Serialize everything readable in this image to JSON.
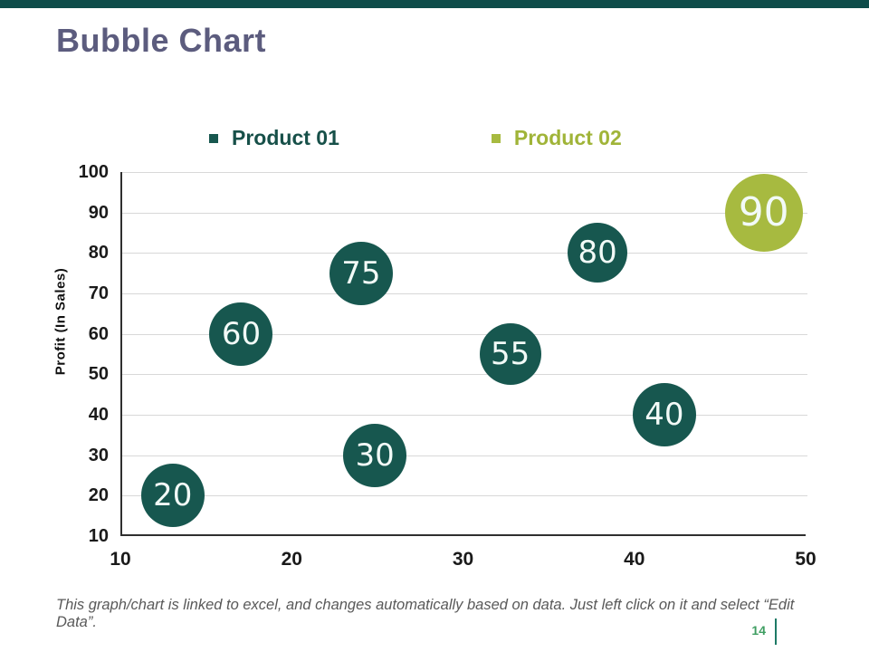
{
  "slide": {
    "title": "Bubble Chart",
    "footer": "This graph/chart is linked to excel, and changes automatically based on data. Just left click on it and select “Edit Data”.",
    "page_number": "14"
  },
  "colors": {
    "top_bar": "#0e4c4a",
    "title": "#5c5c7e",
    "series1": "#17574f",
    "series2": "#a7ba40",
    "legend1_text": "#175049",
    "legend2_text": "#a0b438",
    "gridline": "#d8d8d8",
    "axis_line": "#2f2f2f",
    "page_number": "#3f9e62"
  },
  "chart_data": {
    "type": "scatter",
    "variant": "bubble",
    "title": "",
    "xlabel": "",
    "ylabel": "Profit  (In Sales)",
    "xlim": [
      10,
      50
    ],
    "ylim": [
      10,
      100
    ],
    "xticks": [
      10,
      20,
      30,
      40,
      50
    ],
    "yticks": [
      100,
      90,
      80,
      70,
      60,
      50,
      40,
      30,
      20,
      10
    ],
    "grid": "horizontal",
    "legend_position": "top",
    "series": [
      {
        "name": "Product 01",
        "color": "#17574f",
        "text_color": "#175049",
        "points": [
          {
            "x": 13,
            "y": 20,
            "label": "20",
            "size": 70
          },
          {
            "x": 17,
            "y": 60,
            "label": "60",
            "size": 70
          },
          {
            "x": 24,
            "y": 75,
            "label": "75",
            "size": 70
          },
          {
            "x": 24.8,
            "y": 30,
            "label": "30",
            "size": 70
          },
          {
            "x": 32.7,
            "y": 55,
            "label": "55",
            "size": 68
          },
          {
            "x": 37.8,
            "y": 80,
            "label": "80",
            "size": 66
          },
          {
            "x": 41.7,
            "y": 40,
            "label": "40",
            "size": 70
          }
        ]
      },
      {
        "name": "Product 02",
        "color": "#a7ba40",
        "text_color": "#a0b438",
        "points": [
          {
            "x": 47.5,
            "y": 90,
            "label": "90",
            "size": 86
          }
        ]
      }
    ]
  }
}
